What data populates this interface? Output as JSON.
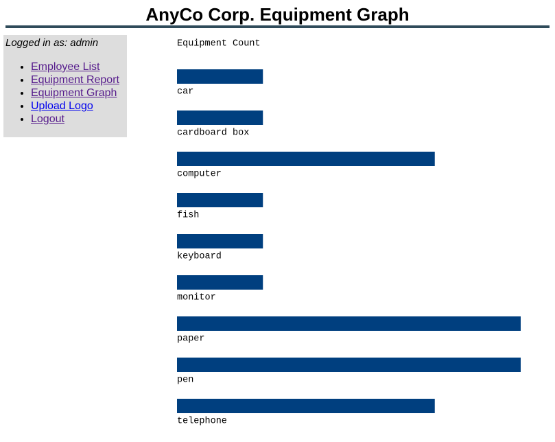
{
  "header": {
    "title": "AnyCo Corp. Equipment Graph"
  },
  "sidebar": {
    "login": "Logged in as: admin",
    "links": [
      "Employee List",
      "Equipment Report",
      "Equipment Graph",
      "Upload Logo",
      "Logout"
    ]
  },
  "chart_data": {
    "type": "bar",
    "orientation": "horizontal",
    "title": "Equipment Count",
    "categories": [
      "car",
      "cardboard box",
      "computer",
      "fish",
      "keyboard",
      "monitor",
      "paper",
      "pen",
      "telephone"
    ],
    "values": [
      1,
      1,
      3,
      1,
      1,
      1,
      4,
      4,
      3
    ],
    "color": "#003f7f"
  }
}
